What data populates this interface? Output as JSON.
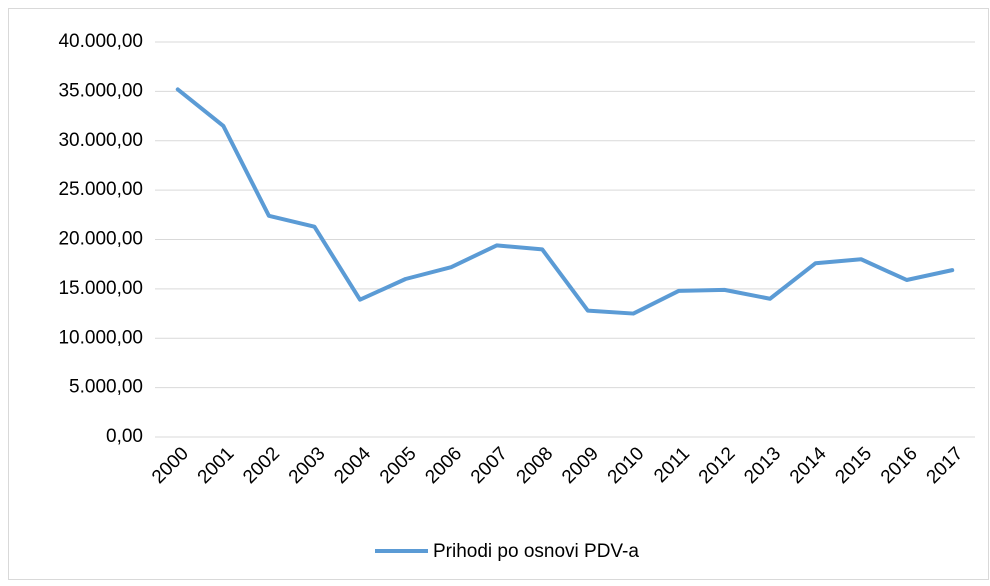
{
  "chart_data": {
    "type": "line",
    "categories": [
      "2000",
      "2001",
      "2002",
      "2003",
      "2004",
      "2005",
      "2006",
      "2007",
      "2008",
      "2009",
      "2010",
      "2011",
      "2012",
      "2013",
      "2014",
      "2015",
      "2016",
      "2017"
    ],
    "series": [
      {
        "name": "Prihodi po osnovi PDV-a",
        "color": "#5b9bd5",
        "values": [
          35200,
          31500,
          22400,
          21300,
          13900,
          16000,
          17200,
          19400,
          19000,
          12800,
          12500,
          14800,
          14900,
          14000,
          17600,
          18000,
          15900,
          16900
        ]
      }
    ],
    "ylim": [
      0,
      40000
    ],
    "yticks": [
      {
        "value": 0,
        "label": "0,00"
      },
      {
        "value": 5000,
        "label": "5.000,00"
      },
      {
        "value": 10000,
        "label": "10.000,00"
      },
      {
        "value": 15000,
        "label": "15.000,00"
      },
      {
        "value": 20000,
        "label": "20.000,00"
      },
      {
        "value": 25000,
        "label": "25.000,00"
      },
      {
        "value": 30000,
        "label": "30.000,00"
      },
      {
        "value": 35000,
        "label": "35.000,00"
      },
      {
        "value": 40000,
        "label": "40.000,00"
      }
    ],
    "grid": true,
    "legend": "bottom"
  }
}
